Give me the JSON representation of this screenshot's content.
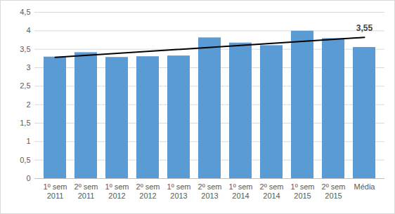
{
  "chart_data": {
    "type": "bar",
    "categories": [
      "1º sem 2011",
      "2º sem 2011",
      "1º sem 2012",
      "2º sem 2012",
      "1º sem 2013",
      "2º sem 2013",
      "1º sem 2014",
      "2º sem 2014",
      "1º sem 2015",
      "2º sem 2015",
      "Média"
    ],
    "values": [
      3.29,
      3.41,
      3.28,
      3.3,
      3.32,
      3.81,
      3.67,
      3.6,
      3.99,
      3.79,
      3.55
    ],
    "value_labels": [
      null,
      null,
      null,
      null,
      null,
      null,
      null,
      null,
      null,
      null,
      "3,55"
    ],
    "trend": [
      3.28,
      3.82
    ],
    "color": "#5b9bd5",
    "ylim": [
      0,
      4.5
    ],
    "yticks": [
      0,
      {
        "value": 0.5,
        "label": "0,5"
      },
      1,
      {
        "value": 1.5,
        "label": "1,5"
      },
      2,
      {
        "value": 2.5,
        "label": "2,5"
      },
      3,
      {
        "value": 3.5,
        "label": "3,5"
      },
      4,
      {
        "value": 4.5,
        "label": "4,5"
      }
    ],
    "grid": true
  }
}
